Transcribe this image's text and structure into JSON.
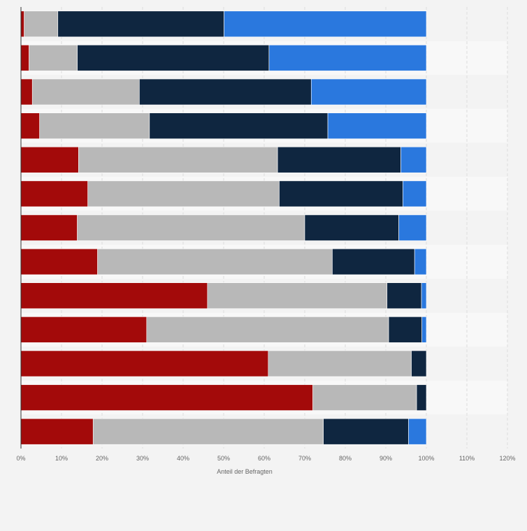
{
  "chart_data": {
    "type": "bar",
    "orientation": "horizontal",
    "stacked": true,
    "categories": [
      "",
      "",
      "",
      "",
      "",
      "",
      "",
      "",
      "",
      "",
      "",
      "",
      ""
    ],
    "series": [
      {
        "color": "#a30a0a",
        "values": [
          0.8,
          2.0,
          2.8,
          4.6,
          14.2,
          16.5,
          13.9,
          18.9,
          46.0,
          31.0,
          61.0,
          72.0,
          17.8
        ]
      },
      {
        "color": "#b8b8b8",
        "values": [
          8.3,
          11.9,
          26.4,
          27.1,
          49.1,
          47.2,
          56.1,
          57.9,
          44.3,
          59.7,
          35.3,
          25.6,
          56.8
        ]
      },
      {
        "color": "#0f2640",
        "values": [
          41.0,
          47.3,
          42.4,
          44.0,
          30.4,
          30.5,
          23.2,
          20.3,
          8.5,
          8.2,
          3.7,
          2.4,
          21.0
        ]
      },
      {
        "color": "#2a78de",
        "values": [
          49.9,
          38.8,
          28.4,
          24.3,
          6.3,
          5.8,
          6.8,
          2.9,
          1.2,
          1.1,
          0.0,
          0.0,
          4.4
        ]
      }
    ],
    "xlabel": "Anteil der Befragten",
    "ylabel": "",
    "xlim": [
      0,
      120
    ],
    "x_ticks": [
      "0%",
      "10%",
      "20%",
      "30%",
      "40%",
      "50%",
      "60%",
      "70%",
      "80%",
      "90%",
      "100%",
      "110%",
      "120%"
    ],
    "grid": true
  }
}
